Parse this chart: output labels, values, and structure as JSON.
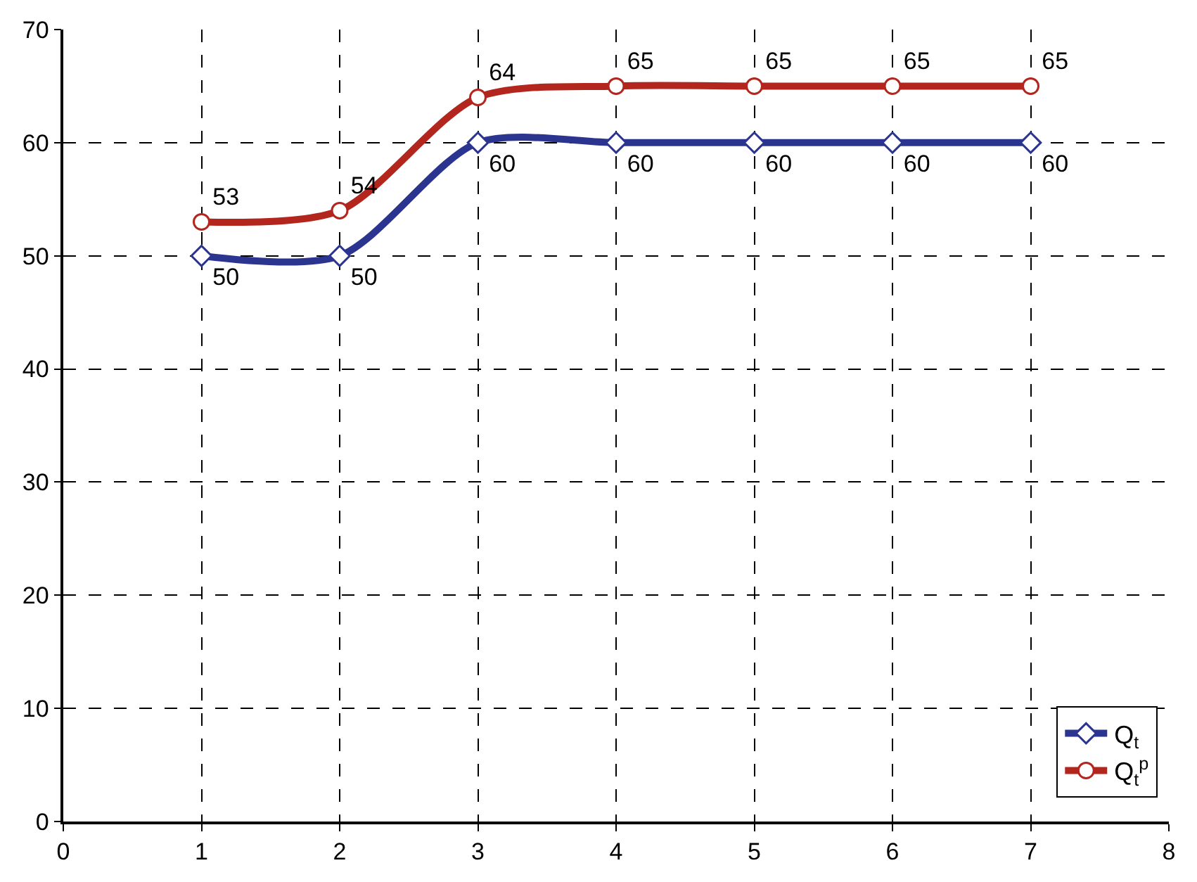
{
  "chart_data": {
    "type": "line",
    "x": [
      1,
      2,
      3,
      4,
      5,
      6,
      7
    ],
    "series": [
      {
        "name": "Q$_{t}$",
        "color": "#2b3590",
        "values": [
          50,
          50,
          60,
          60,
          60,
          60,
          60
        ],
        "marker": "diamond"
      },
      {
        "name": "Q$_{t}$$^{p}$",
        "color": "#b3261e",
        "values": [
          53,
          54,
          64,
          65,
          65,
          65,
          65
        ],
        "marker": "circle"
      }
    ],
    "xlim": [
      0,
      8
    ],
    "xticks": [
      0,
      1,
      2,
      3,
      4,
      5,
      6,
      7,
      8
    ],
    "ylim": [
      0,
      70
    ],
    "yticks": [
      0,
      10,
      20,
      30,
      40,
      50,
      60,
      70
    ],
    "grid": true,
    "legend": "bottom right",
    "data_labels": true,
    "line_style": "solid"
  }
}
